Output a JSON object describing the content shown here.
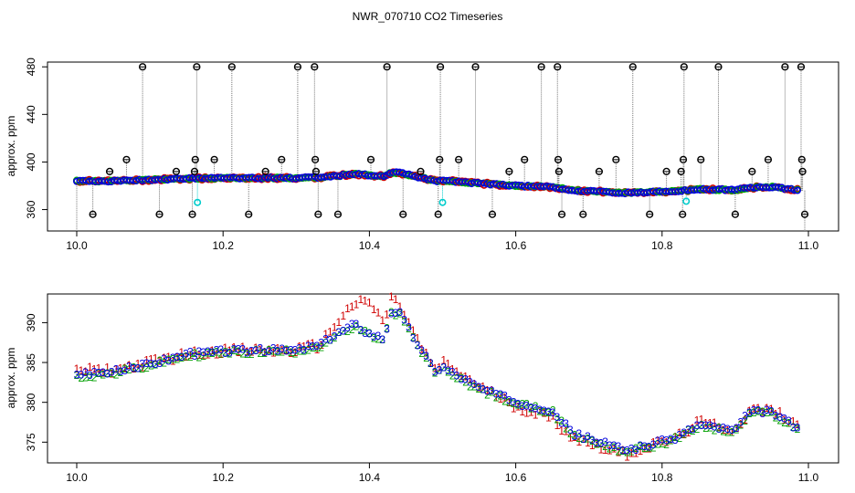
{
  "chart_data": [
    {
      "type": "scatter",
      "title": "NWR_070710  CO2 Timeseries",
      "xlabel": "",
      "ylabel": "approx. ppm",
      "xlim": [
        10.0,
        11.0
      ],
      "ylim": [
        342,
        484
      ],
      "x_ticks": [
        {
          "value": 10.0,
          "label": "10.0"
        },
        {
          "value": 10.2,
          "label": "10.2"
        },
        {
          "value": 10.4,
          "label": "10.4"
        },
        {
          "value": 10.6,
          "label": "10.6"
        },
        {
          "value": 10.8,
          "label": "10.8"
        },
        {
          "value": 11.0,
          "label": "11.0"
        }
      ],
      "y_ticks": [
        {
          "value": 360,
          "label": "360"
        },
        {
          "value": 400,
          "label": "400"
        },
        {
          "value": 440,
          "label": "440"
        },
        {
          "value": 480,
          "label": "480"
        }
      ],
      "baseline": {
        "x": [
          10.0,
          10.05,
          10.1,
          10.15,
          10.2,
          10.25,
          10.3,
          10.32,
          10.33,
          10.36,
          10.38,
          10.4,
          10.42,
          10.43,
          10.44,
          10.47,
          10.49,
          10.5,
          10.55,
          10.6,
          10.65,
          10.66,
          10.68,
          10.75,
          10.8,
          10.82,
          10.85,
          10.9,
          10.92,
          10.95,
          10.99
        ],
        "y": [
          384,
          384,
          385,
          386,
          386.5,
          386.5,
          386.5,
          387,
          387,
          388.5,
          390,
          389,
          388,
          391,
          391,
          387,
          384,
          384.5,
          382,
          380,
          379,
          378,
          376,
          374,
          375,
          375.5,
          377,
          376.5,
          378.5,
          379,
          376
        ]
      },
      "series": [
        {
          "name": "series-1",
          "color": "#d00000"
        },
        {
          "name": "series-2",
          "color": "#00b000"
        },
        {
          "name": "series-3",
          "color": "#0000dd"
        },
        {
          "name": "cyan-outliers",
          "color": "#00cccc",
          "points": [
            {
              "x": 10.165,
              "y": 366
            },
            {
              "x": 10.5,
              "y": 366
            },
            {
              "x": 10.833,
              "y": 367
            }
          ]
        },
        {
          "name": "black-spikes",
          "color": "#000000",
          "points": [
            {
              "x": 10.022,
              "y": 356
            },
            {
              "x": 10.045,
              "y": 392
            },
            {
              "x": 10.068,
              "y": 402
            },
            {
              "x": 10.09,
              "y": 480
            },
            {
              "x": 10.113,
              "y": 356
            },
            {
              "x": 10.136,
              "y": 392
            },
            {
              "x": 10.158,
              "y": 356
            },
            {
              "x": 10.161,
              "y": 392
            },
            {
              "x": 10.162,
              "y": 402
            },
            {
              "x": 10.164,
              "y": 480
            },
            {
              "x": 10.188,
              "y": 402
            },
            {
              "x": 10.212,
              "y": 480
            },
            {
              "x": 10.235,
              "y": 356
            },
            {
              "x": 10.258,
              "y": 392
            },
            {
              "x": 10.28,
              "y": 402
            },
            {
              "x": 10.302,
              "y": 480
            },
            {
              "x": 10.325,
              "y": 480
            },
            {
              "x": 10.326,
              "y": 402
            },
            {
              "x": 10.327,
              "y": 392
            },
            {
              "x": 10.33,
              "y": 356
            },
            {
              "x": 10.357,
              "y": 356
            },
            {
              "x": 10.402,
              "y": 402
            },
            {
              "x": 10.424,
              "y": 480
            },
            {
              "x": 10.446,
              "y": 356
            },
            {
              "x": 10.47,
              "y": 392
            },
            {
              "x": 10.494,
              "y": 356
            },
            {
              "x": 10.496,
              "y": 402
            },
            {
              "x": 10.497,
              "y": 480
            },
            {
              "x": 10.522,
              "y": 402
            },
            {
              "x": 10.545,
              "y": 480
            },
            {
              "x": 10.568,
              "y": 356
            },
            {
              "x": 10.591,
              "y": 392
            },
            {
              "x": 10.612,
              "y": 402
            },
            {
              "x": 10.635,
              "y": 480
            },
            {
              "x": 10.657,
              "y": 480
            },
            {
              "x": 10.658,
              "y": 402
            },
            {
              "x": 10.659,
              "y": 392
            },
            {
              "x": 10.663,
              "y": 356
            },
            {
              "x": 10.692,
              "y": 356
            },
            {
              "x": 10.714,
              "y": 392
            },
            {
              "x": 10.737,
              "y": 402
            },
            {
              "x": 10.76,
              "y": 480
            },
            {
              "x": 10.783,
              "y": 356
            },
            {
              "x": 10.806,
              "y": 392
            },
            {
              "x": 10.826,
              "y": 392
            },
            {
              "x": 10.828,
              "y": 356
            },
            {
              "x": 10.829,
              "y": 402
            },
            {
              "x": 10.83,
              "y": 480
            },
            {
              "x": 10.853,
              "y": 402
            },
            {
              "x": 10.877,
              "y": 480
            },
            {
              "x": 10.9,
              "y": 356
            },
            {
              "x": 10.923,
              "y": 392
            },
            {
              "x": 10.945,
              "y": 402
            },
            {
              "x": 10.968,
              "y": 480
            },
            {
              "x": 10.99,
              "y": 480
            },
            {
              "x": 10.991,
              "y": 402
            },
            {
              "x": 10.992,
              "y": 392
            },
            {
              "x": 10.995,
              "y": 356
            }
          ]
        }
      ]
    },
    {
      "type": "line",
      "title": "",
      "xlabel": "",
      "ylabel": "approx. ppm",
      "xlim": [
        10.0,
        11.0
      ],
      "ylim": [
        372.4,
        393.6
      ],
      "x_ticks": [
        {
          "value": 10.0,
          "label": "10.0"
        },
        {
          "value": 10.2,
          "label": "10.2"
        },
        {
          "value": 10.4,
          "label": "10.4"
        },
        {
          "value": 10.6,
          "label": "10.6"
        },
        {
          "value": 10.8,
          "label": "10.8"
        },
        {
          "value": 11.0,
          "label": "11.0"
        }
      ],
      "y_ticks": [
        {
          "value": 375,
          "label": "375"
        },
        {
          "value": 380,
          "label": "380"
        },
        {
          "value": 385,
          "label": "385"
        },
        {
          "value": 390,
          "label": "390"
        }
      ],
      "series": [
        {
          "name": "1",
          "color": "#d00000",
          "mark": "1",
          "x": [
            10.0,
            10.05,
            10.1,
            10.15,
            10.2,
            10.25,
            10.3,
            10.32,
            10.33,
            10.36,
            10.38,
            10.4,
            10.42,
            10.43,
            10.44,
            10.47,
            10.49,
            10.5,
            10.55,
            10.6,
            10.65,
            10.66,
            10.68,
            10.75,
            10.8,
            10.82,
            10.85,
            10.9,
            10.92,
            10.95,
            10.99
          ],
          "y": [
            384,
            384,
            385,
            386,
            386.5,
            386.5,
            386.5,
            387,
            387,
            390.5,
            392.5,
            392.5,
            390,
            393,
            392.5,
            387,
            384,
            385,
            382,
            379.5,
            378,
            377,
            375.5,
            373.5,
            375,
            375.5,
            377.5,
            376.5,
            379,
            379,
            377
          ]
        },
        {
          "name": "2",
          "color": "#00a000",
          "mark": "2",
          "x": [
            10.0,
            10.05,
            10.1,
            10.15,
            10.2,
            10.25,
            10.3,
            10.32,
            10.33,
            10.36,
            10.38,
            10.4,
            10.42,
            10.43,
            10.44,
            10.47,
            10.49,
            10.5,
            10.55,
            10.6,
            10.65,
            10.66,
            10.68,
            10.75,
            10.8,
            10.82,
            10.85,
            10.9,
            10.92,
            10.95,
            10.99
          ],
          "y": [
            383.2,
            383.6,
            384.6,
            385.8,
            386.2,
            386.3,
            386.4,
            386.9,
            386.9,
            388.6,
            389.4,
            388.4,
            387.8,
            391.2,
            391.2,
            386.4,
            383.8,
            384.2,
            381.6,
            379.8,
            378.8,
            377.6,
            375.8,
            373.8,
            374.8,
            375.4,
            377,
            376.2,
            378.6,
            378.6,
            376.2
          ]
        },
        {
          "name": "3",
          "color": "#0000dd",
          "mark": "3",
          "x": [
            10.0,
            10.05,
            10.1,
            10.15,
            10.2,
            10.25,
            10.3,
            10.32,
            10.33,
            10.36,
            10.38,
            10.4,
            10.42,
            10.43,
            10.44,
            10.47,
            10.49,
            10.5,
            10.55,
            10.6,
            10.65,
            10.66,
            10.68,
            10.75,
            10.8,
            10.82,
            10.85,
            10.9,
            10.92,
            10.95,
            10.99
          ],
          "y": [
            383.6,
            383.8,
            384.8,
            386,
            386.4,
            386.5,
            386.5,
            387,
            387,
            388.8,
            389.8,
            388.6,
            388,
            391.4,
            391.4,
            386.6,
            384,
            384.4,
            381.8,
            380,
            379,
            377.8,
            376,
            374,
            375,
            375.6,
            377.2,
            376.4,
            378.8,
            378.8,
            376.4
          ]
        }
      ]
    }
  ]
}
